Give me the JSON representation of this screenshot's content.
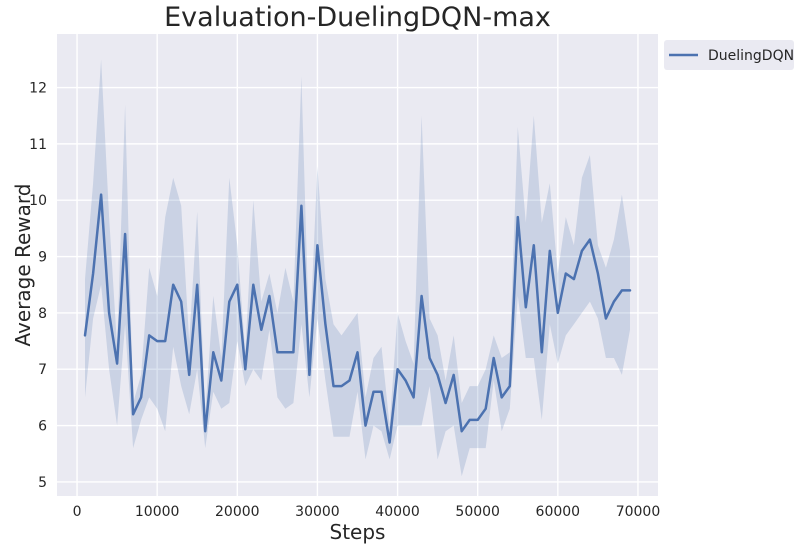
{
  "chart_data": {
    "type": "line",
    "title": "Evaluation-DuelingDQN-max",
    "xlabel": "Steps",
    "ylabel": "Average Reward",
    "xlim": [
      -2500,
      72500
    ],
    "ylim": [
      4.75,
      12.95
    ],
    "xticks": [
      0,
      10000,
      20000,
      30000,
      40000,
      50000,
      60000,
      70000
    ],
    "yticks": [
      5,
      6,
      7,
      8,
      9,
      10,
      11,
      12
    ],
    "grid": true,
    "legend_position": "outside-top-right",
    "colors": {
      "background": "#eaeaf2",
      "grid": "#ffffff",
      "line": "#4c72b0",
      "band": "#4c72b0"
    },
    "series": [
      {
        "name": "DuelingDQN",
        "x": [
          1000,
          2000,
          3000,
          4000,
          5000,
          6000,
          7000,
          8000,
          9000,
          10000,
          11000,
          12000,
          13000,
          14000,
          15000,
          16000,
          17000,
          18000,
          19000,
          20000,
          21000,
          22000,
          23000,
          24000,
          25000,
          26000,
          27000,
          28000,
          29000,
          30000,
          31000,
          32000,
          33000,
          34000,
          35000,
          36000,
          37000,
          38000,
          39000,
          40000,
          41000,
          42000,
          43000,
          44000,
          45000,
          46000,
          47000,
          48000,
          49000,
          50000,
          51000,
          52000,
          53000,
          54000,
          55000,
          56000,
          57000,
          58000,
          59000,
          60000,
          61000,
          62000,
          63000,
          64000,
          65000,
          66000,
          67000,
          68000,
          69000
        ],
        "values": [
          7.6,
          8.7,
          10.1,
          8.0,
          7.1,
          9.4,
          6.2,
          6.5,
          7.6,
          7.5,
          7.5,
          8.5,
          8.2,
          6.9,
          8.5,
          5.9,
          7.3,
          6.8,
          8.2,
          8.5,
          7.0,
          8.5,
          7.7,
          8.3,
          7.3,
          7.3,
          7.3,
          9.9,
          6.9,
          9.2,
          7.8,
          6.7,
          6.7,
          6.8,
          7.3,
          6.0,
          6.6,
          6.6,
          5.7,
          7.0,
          6.8,
          6.5,
          8.3,
          7.2,
          6.9,
          6.4,
          6.9,
          5.9,
          6.1,
          6.1,
          6.3,
          7.2,
          6.5,
          6.7,
          9.7,
          8.1,
          9.2,
          7.3,
          9.1,
          8.0,
          8.7,
          8.6,
          9.1,
          9.3,
          8.7,
          7.9,
          8.2,
          8.4,
          8.4
        ],
        "upper": [
          8.6,
          10.3,
          12.5,
          9.7,
          7.4,
          11.7,
          6.4,
          6.9,
          8.8,
          8.3,
          9.7,
          10.4,
          9.9,
          7.5,
          9.8,
          6.2,
          8.3,
          7.2,
          10.4,
          9.2,
          7.3,
          10.0,
          8.2,
          8.7,
          8.0,
          8.8,
          8.2,
          12.2,
          7.4,
          10.6,
          8.6,
          7.8,
          7.6,
          7.8,
          8.0,
          6.5,
          7.2,
          7.4,
          6.0,
          8.0,
          7.5,
          7.1,
          11.5,
          7.9,
          7.6,
          6.8,
          7.6,
          6.4,
          6.7,
          6.7,
          7.0,
          7.6,
          7.2,
          7.3,
          11.3,
          9.6,
          11.5,
          9.6,
          10.3,
          8.7,
          9.7,
          9.2,
          10.4,
          10.8,
          9.2,
          8.8,
          9.3,
          10.1,
          9.1
        ],
        "lower": [
          6.5,
          7.9,
          8.5,
          7.0,
          6.0,
          7.8,
          5.6,
          6.1,
          6.5,
          6.3,
          5.9,
          7.4,
          6.7,
          6.2,
          7.0,
          5.6,
          6.6,
          6.3,
          6.4,
          7.5,
          6.7,
          7.0,
          6.8,
          7.7,
          6.5,
          6.3,
          6.4,
          7.8,
          6.5,
          7.9,
          6.8,
          5.8,
          5.8,
          5.8,
          6.6,
          5.4,
          6.0,
          5.9,
          5.4,
          6.0,
          6.0,
          6.0,
          6.0,
          6.7,
          5.4,
          5.9,
          6.0,
          5.1,
          5.6,
          5.6,
          5.6,
          6.8,
          5.9,
          6.3,
          8.3,
          7.2,
          7.2,
          6.1,
          7.8,
          7.1,
          7.6,
          7.8,
          8.0,
          8.2,
          7.9,
          7.2,
          7.2,
          6.9,
          7.7
        ]
      }
    ]
  }
}
